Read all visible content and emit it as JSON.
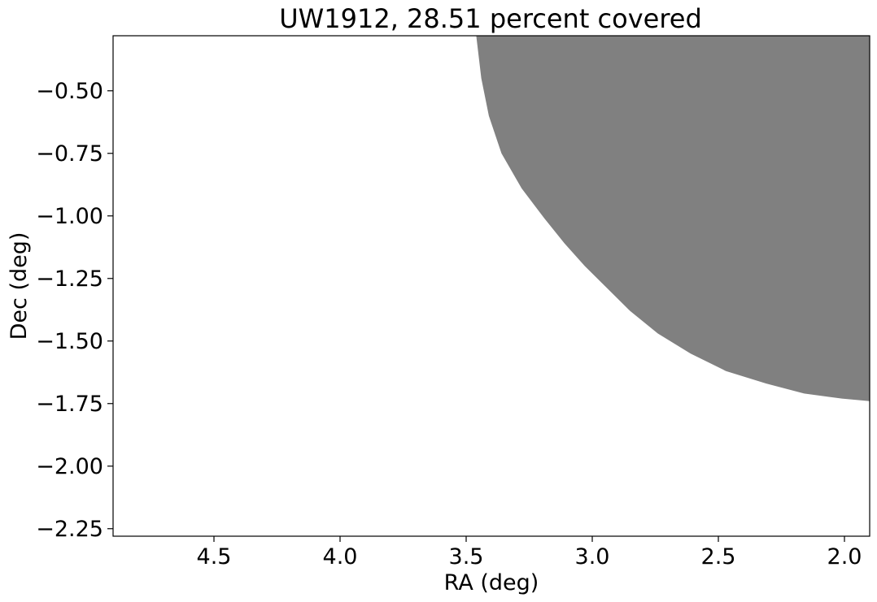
{
  "chart_data": {
    "type": "area",
    "title": "UW1912, 28.51 percent covered",
    "xlabel": "RA (deg)",
    "ylabel": "Dec (deg)",
    "xlim": [
      4.9,
      1.9
    ],
    "ylim": [
      -2.28,
      -0.28
    ],
    "x_inverted": true,
    "grid": false,
    "xticks": [
      {
        "value": 4.5,
        "label": "4.5"
      },
      {
        "value": 4.0,
        "label": "4.0"
      },
      {
        "value": 3.5,
        "label": "3.5"
      },
      {
        "value": 3.0,
        "label": "3.0"
      },
      {
        "value": 2.5,
        "label": "2.5"
      },
      {
        "value": 2.0,
        "label": "2.0"
      }
    ],
    "yticks": [
      {
        "value": -0.5,
        "label": "−0.50"
      },
      {
        "value": -0.75,
        "label": "−0.75"
      },
      {
        "value": -1.0,
        "label": "−1.00"
      },
      {
        "value": -1.25,
        "label": "−1.25"
      },
      {
        "value": -1.5,
        "label": "−1.50"
      },
      {
        "value": -1.75,
        "label": "−1.75"
      },
      {
        "value": -2.0,
        "label": "−2.00"
      },
      {
        "value": -2.25,
        "label": "−2.25"
      }
    ],
    "coverage_boundary": {
      "color": "#808080",
      "points": [
        {
          "x": 3.46,
          "y": -0.28
        },
        {
          "x": 3.44,
          "y": -0.45
        },
        {
          "x": 3.41,
          "y": -0.6
        },
        {
          "x": 3.36,
          "y": -0.75
        },
        {
          "x": 3.28,
          "y": -0.89
        },
        {
          "x": 3.19,
          "y": -1.01
        },
        {
          "x": 3.11,
          "y": -1.11
        },
        {
          "x": 3.03,
          "y": -1.2
        },
        {
          "x": 2.95,
          "y": -1.28
        },
        {
          "x": 2.85,
          "y": -1.38
        },
        {
          "x": 2.74,
          "y": -1.47
        },
        {
          "x": 2.61,
          "y": -1.55
        },
        {
          "x": 2.47,
          "y": -1.62
        },
        {
          "x": 2.31,
          "y": -1.67
        },
        {
          "x": 2.16,
          "y": -1.71
        },
        {
          "x": 2.01,
          "y": -1.73
        },
        {
          "x": 1.9,
          "y": -1.74
        }
      ]
    }
  }
}
